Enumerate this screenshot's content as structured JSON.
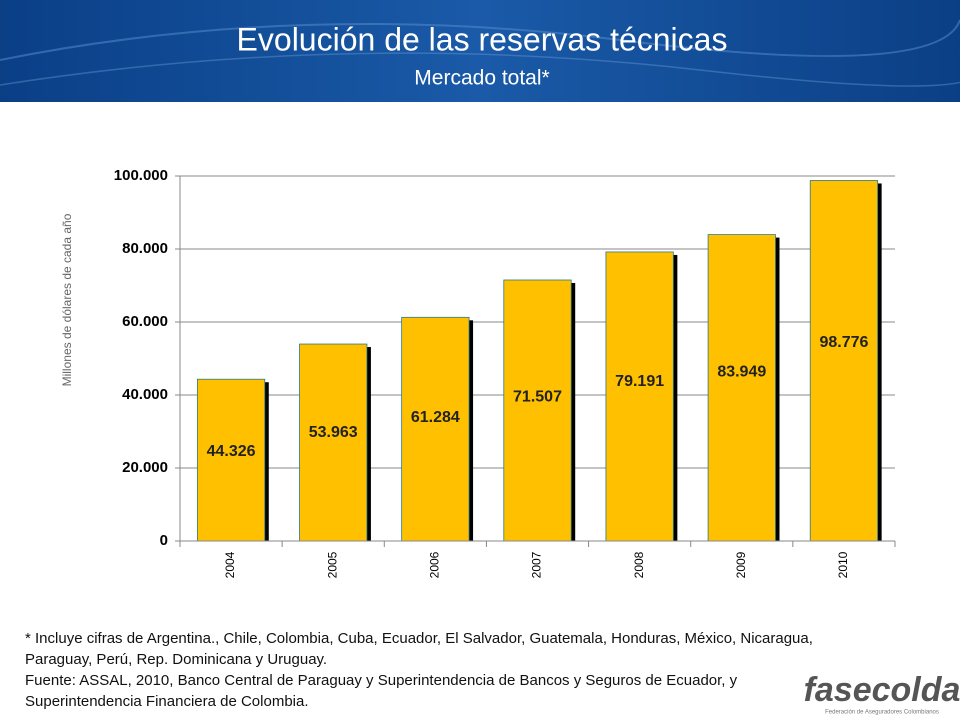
{
  "chart_data": {
    "type": "bar",
    "title": "Evolución de las reservas técnicas",
    "subtitle": "Mercado total*",
    "y_label": "Millones de dólares de cada año",
    "categories": [
      "2004",
      "2005",
      "2006",
      "2007",
      "2008",
      "2009",
      "2010"
    ],
    "values": [
      44326,
      53963,
      61284,
      71507,
      79191,
      83949,
      98776
    ],
    "value_labels": [
      "44.326",
      "53.963",
      "61.284",
      "71.507",
      "79.191",
      "83.949",
      "98.776"
    ],
    "color": "#ffc000",
    "ylim": [
      0,
      100000
    ],
    "yticks": [
      0,
      {
        "value": 20000,
        "label": "20.000"
      },
      {
        "value": 40000,
        "label": "40.000"
      },
      {
        "value": 60000,
        "label": "60.000"
      },
      {
        "value": 80000,
        "label": "80.000"
      },
      {
        "value": 100000,
        "label": "100.000"
      }
    ],
    "grid": true
  },
  "footnote": {
    "note": "* Incluye cifras de Argentina., Chile, Colombia, Cuba, Ecuador, El Salvador, Guatemala, Honduras, México, Nicaragua, Paraguay, Perú, Rep. Dominicana y Uruguay.",
    "source": "Fuente: ASSAL, 2010, Banco Central de Paraguay y Superintendencia de Bancos y Seguros de Ecuador, y Superintendencia Financiera de Colombia."
  },
  "logo": {
    "name": "fasecolda",
    "tagline": "Federación de Aseguradores Colombianos"
  }
}
